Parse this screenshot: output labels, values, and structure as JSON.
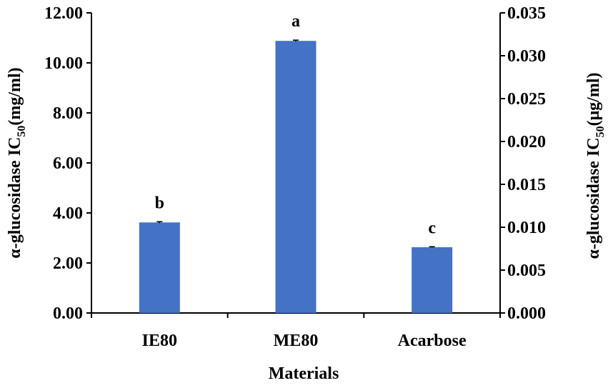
{
  "chart_data": {
    "type": "bar",
    "categories": [
      "IE80",
      "ME80",
      "Acarbose"
    ],
    "values": [
      3.62,
      10.88,
      2.63
    ],
    "secondary_values": [
      0.0109,
      0.0326,
      0.0079
    ],
    "error": [
      0.03,
      0.03,
      0.02
    ],
    "significance": [
      "b",
      "a",
      "c"
    ],
    "bar_color": "#4472C4",
    "xlabel": "Materials",
    "ylabel": {
      "prefix": "α-glucosidase IC",
      "subscript": "50",
      "suffix": "(mg/ml)"
    },
    "y2label": {
      "prefix": "α-glucosidase IC",
      "subscript": "50",
      "suffix": "(μg/ml)"
    },
    "ylim": [
      0,
      12
    ],
    "y2lim": [
      0,
      0.035
    ],
    "yticks": [
      "0.00",
      "2.00",
      "4.00",
      "6.00",
      "8.00",
      "10.00",
      "12.00"
    ],
    "y2ticks": [
      "0.000",
      "0.005",
      "0.010",
      "0.015",
      "0.020",
      "0.025",
      "0.030",
      "0.035"
    ],
    "grid": false,
    "legend": "none"
  }
}
